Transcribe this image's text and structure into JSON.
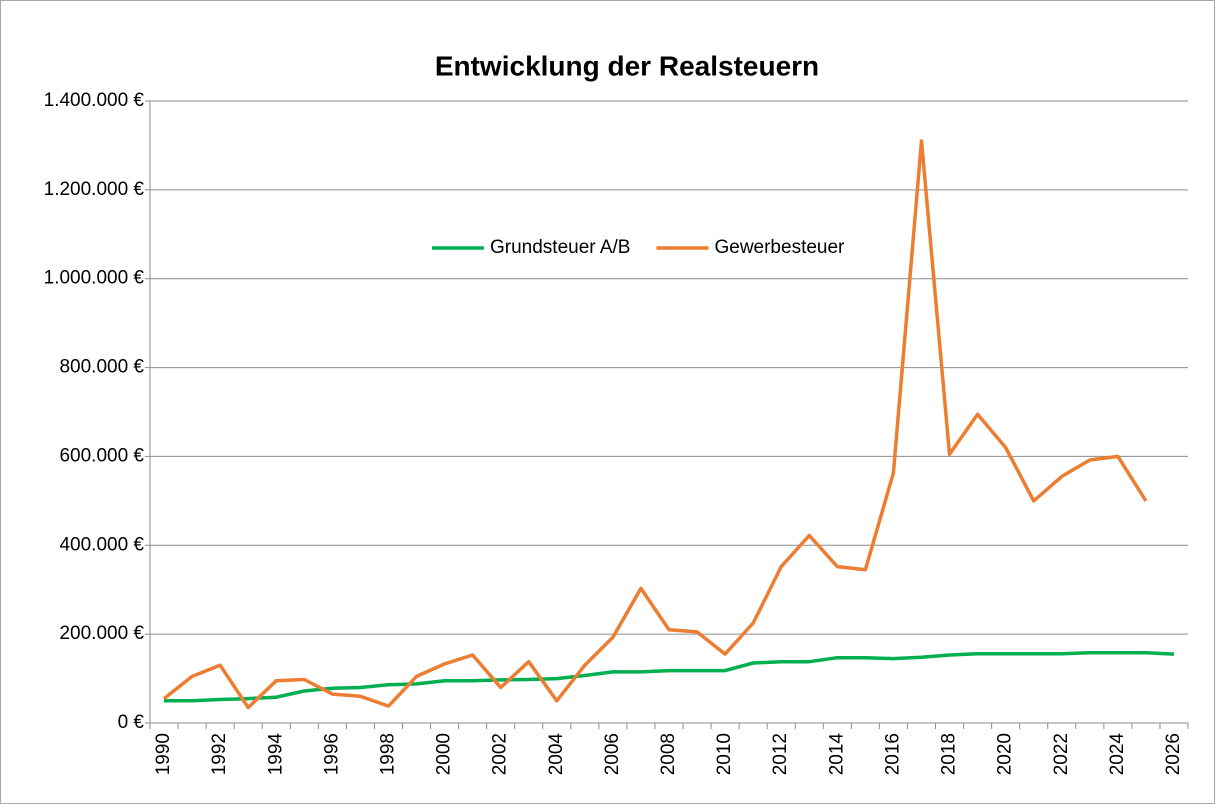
{
  "chart_data": {
    "type": "line",
    "title": "Entwicklung der Realsteuern",
    "categories": [
      "1990",
      null,
      "1992",
      null,
      "1994",
      null,
      "1996",
      null,
      "1998",
      null,
      "2000",
      null,
      "2002",
      null,
      "2004",
      null,
      "2006",
      null,
      "2008",
      null,
      "2010",
      null,
      "2012",
      null,
      "2014",
      null,
      "2016",
      null,
      "2018",
      null,
      "2020",
      null,
      "2022",
      null,
      "2024",
      null,
      "2026"
    ],
    "series": [
      {
        "name": "Grundsteuer A/B",
        "color": "#00b050",
        "values": [
          50000,
          50000,
          53000,
          55000,
          58000,
          72000,
          78000,
          80000,
          86000,
          88000,
          95000,
          95000,
          97000,
          98000,
          100000,
          107000,
          115000,
          115000,
          118000,
          118000,
          118000,
          135000,
          138000,
          138000,
          147000,
          147000,
          145000,
          148000,
          153000,
          156000,
          156000,
          156000,
          156000,
          158000,
          158000,
          158000,
          155000
        ]
      },
      {
        "name": "Gewerbesteuer",
        "color": "#ed7d31",
        "values": [
          55000,
          105000,
          130000,
          35000,
          95000,
          98000,
          65000,
          60000,
          38000,
          105000,
          133000,
          153000,
          80000,
          138000,
          50000,
          130000,
          193000,
          303000,
          210000,
          205000,
          155000,
          225000,
          352000,
          422000,
          352000,
          345000,
          563000,
          1310000,
          605000,
          695000,
          620000,
          500000,
          555000,
          592000,
          600000,
          500000,
          null
        ]
      }
    ],
    "ylim": [
      0,
      1400000
    ],
    "yticks": [
      {
        "value": 0,
        "label": "0 €"
      },
      {
        "value": 200000,
        "label": "200.000 €"
      },
      {
        "value": 400000,
        "label": "400.000 €"
      },
      {
        "value": 600000,
        "label": "600.000 €"
      },
      {
        "value": 800000,
        "label": "800.000 €"
      },
      {
        "value": 1000000,
        "label": "1.000.000 €"
      },
      {
        "value": 1200000,
        "label": "1.200.000 €"
      },
      {
        "value": 1400000,
        "label": "1.400.000 €"
      }
    ],
    "grid": true
  }
}
